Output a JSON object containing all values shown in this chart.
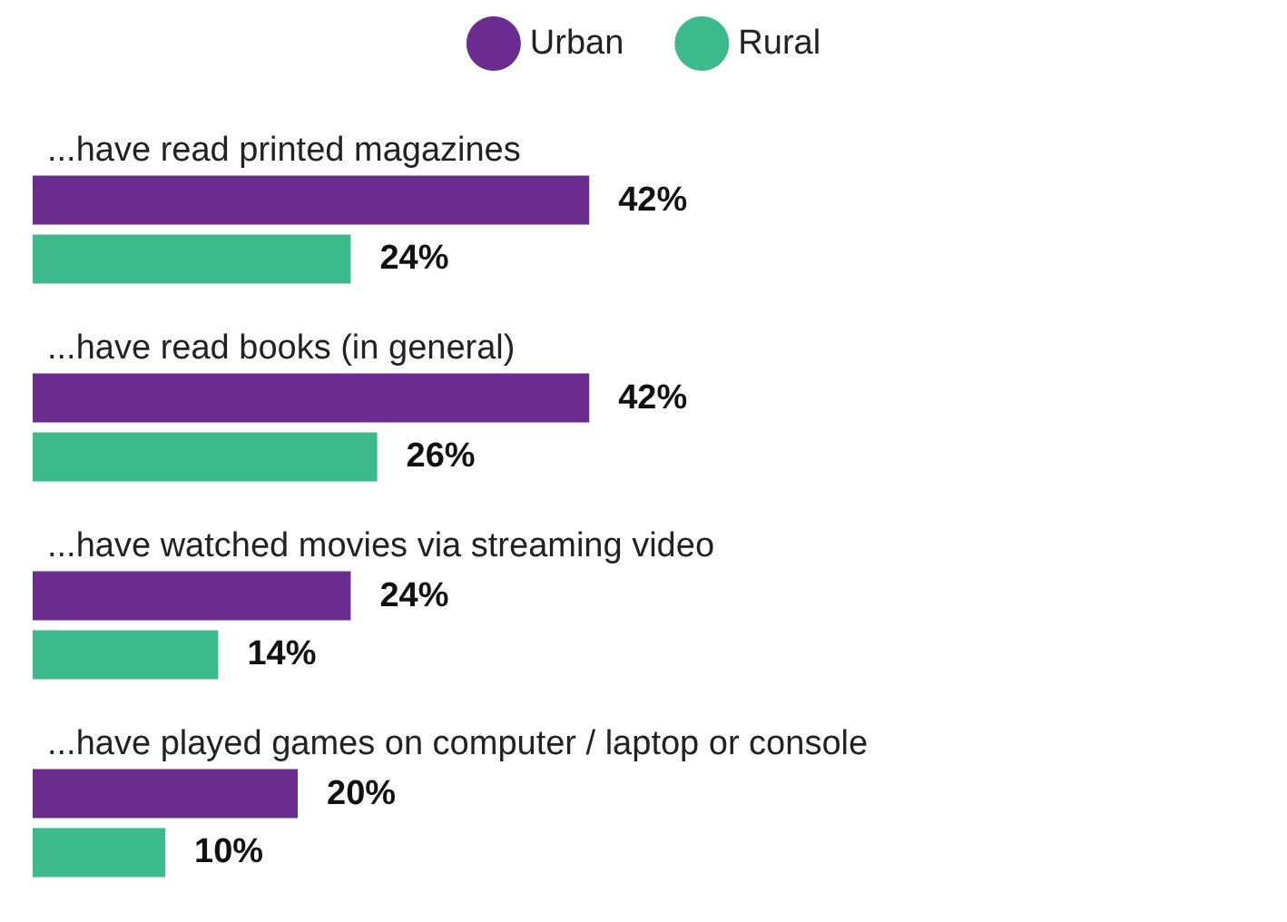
{
  "chart_data": {
    "type": "bar",
    "orientation": "horizontal",
    "categories": [
      "...have read printed magazines",
      "...have read books (in general)",
      "...have watched movies via streaming video",
      "...have played games on computer / laptop or console"
    ],
    "series": [
      {
        "name": "Urban",
        "color": "#6a2d8f",
        "values": [
          42,
          42,
          24,
          20
        ],
        "value_labels": [
          "42%",
          "42%",
          "24%",
          "20%"
        ]
      },
      {
        "name": "Rural",
        "color": "#3dba8c",
        "values": [
          24,
          26,
          14,
          10
        ],
        "value_labels": [
          "24%",
          "26%",
          "14%",
          "10%"
        ]
      }
    ],
    "tick_labels": "y",
    "legend": "top"
  }
}
